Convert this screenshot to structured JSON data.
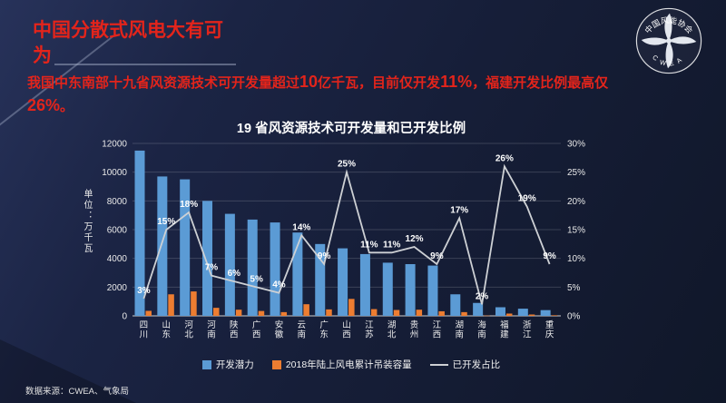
{
  "slide": {
    "title": "中国分散式风电大有可为",
    "body_segments": [
      {
        "t": "我国中东南部十九省风资源技术可开发量超过",
        "em": false
      },
      {
        "t": "10",
        "em": true
      },
      {
        "t": "亿千瓦，目前仅开发",
        "em": false
      },
      {
        "t": "11%",
        "em": true
      },
      {
        "t": "，福建开发比例最高仅",
        "em": false
      },
      {
        "t": "26%",
        "em": true
      },
      {
        "t": "。",
        "em": false
      }
    ],
    "source": "数据来源：CWEA、气象局",
    "logo": {
      "top_text": "中国风能协会",
      "bottom_text": "CWEA"
    },
    "colors": {
      "background": "#17203a",
      "title_red": "#e3241b"
    }
  },
  "chart_data": {
    "type": "bar+line combo",
    "title": "19 省风资源技术可开发量和已开发比例",
    "unit_label": "单位：万千瓦",
    "categories": [
      "四川",
      "山东",
      "河北",
      "河南",
      "陕西",
      "广西",
      "安徽",
      "云南",
      "广东",
      "山西",
      "江苏",
      "湖北",
      "贵州",
      "江西",
      "湖南",
      "海南",
      "福建",
      "浙江",
      "重庆"
    ],
    "series": [
      {
        "name": "开发潜力",
        "type": "bar",
        "axis": "left",
        "color": "#5b9bd5",
        "values": [
          11500,
          9700,
          9500,
          8000,
          7100,
          6700,
          6500,
          5800,
          5000,
          4700,
          4300,
          3700,
          3600,
          3500,
          1500,
          900,
          600,
          500,
          400
        ]
      },
      {
        "name": "2018年陆上风电累计吊装容量",
        "type": "bar",
        "axis": "left",
        "color": "#ed7d31",
        "values": [
          350,
          1500,
          1700,
          560,
          430,
          340,
          260,
          810,
          450,
          1180,
          470,
          410,
          430,
          320,
          260,
          20,
          160,
          95,
          40
        ]
      },
      {
        "name": "已开发占比",
        "type": "line",
        "axis": "right",
        "color": "#cdd0d4",
        "values": [
          3,
          15,
          18,
          7,
          6,
          5,
          4,
          14,
          9,
          25,
          11,
          11,
          12,
          9,
          17,
          2,
          26,
          19,
          9
        ],
        "unit": "%"
      }
    ],
    "left_axis": {
      "min": 0,
      "max": 12000,
      "step": 2000
    },
    "right_axis": {
      "min": 0,
      "max": 30,
      "step": 5,
      "format": "percent"
    },
    "grid": true,
    "legend_position": "bottom"
  }
}
